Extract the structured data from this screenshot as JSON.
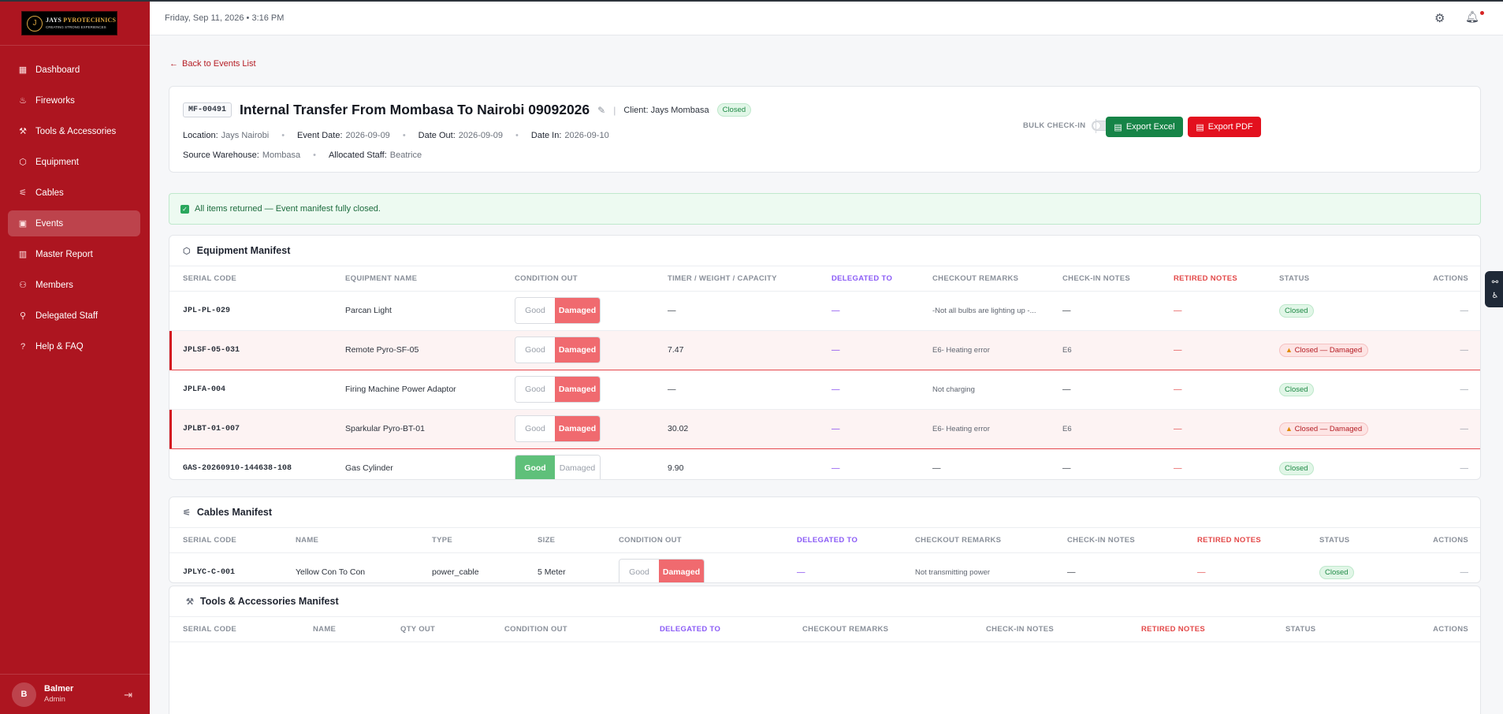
{
  "app": {
    "logo": {
      "brand_main": "JAYS",
      "brand_accent": "PYROTECHNICS",
      "tagline": "CREATING STRONG EXPERIENCES",
      "mark": "J"
    },
    "accent_color": "#ad1520"
  },
  "sidebar": {
    "items": [
      {
        "label": "Dashboard",
        "icon": "grid-icon"
      },
      {
        "label": "Fireworks",
        "icon": "flame-icon"
      },
      {
        "label": "Tools & Accessories",
        "icon": "wrench-icon"
      },
      {
        "label": "Equipment",
        "icon": "box-icon"
      },
      {
        "label": "Cables",
        "icon": "cable-icon"
      },
      {
        "label": "Events",
        "icon": "calendar-icon",
        "active": true
      },
      {
        "label": "Master Report",
        "icon": "chart-icon"
      },
      {
        "label": "Members",
        "icon": "users-icon"
      },
      {
        "label": "Delegated Staff",
        "icon": "user-check-icon"
      },
      {
        "label": "Help & FAQ",
        "icon": "help-icon"
      }
    ],
    "user": {
      "initial": "B",
      "name": "Balmer",
      "role": "Admin"
    }
  },
  "header": {
    "datetime": "Friday, Sep 11, 2026  •  3:16 PM"
  },
  "back_link": "Back to Events List",
  "event": {
    "code": "MF-00491",
    "title": "Internal Transfer From Mombasa To Nairobi 09092026",
    "client_label": "Client:",
    "client": "Jays Mombasa",
    "status": "Closed",
    "location_label": "Location:",
    "location": "Jays Nairobi",
    "event_date_label": "Event Date:",
    "event_date": "2026-09-09",
    "date_out_label": "Date Out:",
    "date_out": "2026-09-09",
    "date_in_label": "Date In:",
    "date_in": "2026-09-10",
    "source_label": "Source Warehouse:",
    "source": "Mombasa",
    "staff_label": "Allocated Staff:",
    "staff": "Beatrice",
    "bulk_checkin": "BULK CHECK-IN",
    "export_excel": "Export Excel",
    "export_pdf": "Export PDF"
  },
  "alert": "All items returned — Event manifest fully closed.",
  "equipment": {
    "title": "Equipment Manifest",
    "columns": [
      "SERIAL CODE",
      "EQUIPMENT NAME",
      "CONDITION OUT",
      "TIMER / WEIGHT / CAPACITY",
      "DELEGATED TO",
      "CHECKOUT REMARKS",
      "CHECK-IN NOTES",
      "RETIRED NOTES",
      "STATUS",
      "ACTIONS"
    ],
    "condition_good": "Good",
    "condition_damaged": "Damaged",
    "rows": [
      {
        "serial": "JPL-PL-029",
        "name": "Parcan Light",
        "condition": "Damaged",
        "timer": "—",
        "delegated": "—",
        "remarks": "-Not all bulbs are lighting up -...",
        "checkin": "—",
        "retired": "—",
        "status": "Closed",
        "actions": "—"
      },
      {
        "serial": "JPLSF-05-031",
        "name": "Remote Pyro-SF-05",
        "condition": "Damaged",
        "timer": "7.47",
        "delegated": "—",
        "remarks": "E6- Heating error",
        "checkin": "E6",
        "retired": "—",
        "status": "Closed — Damaged",
        "actions": "—"
      },
      {
        "serial": "JPLFA-004",
        "name": "Firing Machine Power Adaptor",
        "condition": "Damaged",
        "timer": "—",
        "delegated": "—",
        "remarks": "Not charging",
        "checkin": "—",
        "retired": "—",
        "status": "Closed",
        "actions": "—"
      },
      {
        "serial": "JPLBT-01-007",
        "name": "Sparkular Pyro-BT-01",
        "condition": "Damaged",
        "timer": "30.02",
        "delegated": "—",
        "remarks": "E6- Heating error",
        "checkin": "E6",
        "retired": "—",
        "status": "Closed — Damaged",
        "actions": "—"
      },
      {
        "serial": "GAS-20260910-144638-108",
        "name": "Gas Cylinder",
        "condition": "Good",
        "timer": "9.90",
        "delegated": "—",
        "remarks": "—",
        "checkin": "—",
        "retired": "—",
        "status": "Closed",
        "actions": "—"
      }
    ]
  },
  "cables": {
    "title": "Cables Manifest",
    "columns": [
      "SERIAL CODE",
      "NAME",
      "TYPE",
      "SIZE",
      "CONDITION OUT",
      "DELEGATED TO",
      "CHECKOUT REMARKS",
      "CHECK-IN NOTES",
      "RETIRED NOTES",
      "STATUS",
      "ACTIONS"
    ],
    "rows": [
      {
        "serial": "JPLYC-C-001",
        "name": "Yellow Con To Con",
        "type": "power_cable",
        "size": "5 Meter",
        "condition": "Damaged",
        "delegated": "—",
        "remarks": "Not transmitting power",
        "checkin": "—",
        "retired": "—",
        "status": "Closed",
        "actions": "—"
      }
    ]
  },
  "tools": {
    "title": "Tools & Accessories Manifest",
    "columns": [
      "SERIAL CODE",
      "NAME",
      "QTY OUT",
      "CONDITION OUT",
      "DELEGATED TO",
      "CHECKOUT REMARKS",
      "CHECK-IN NOTES",
      "RETIRED NOTES",
      "STATUS",
      "ACTIONS"
    ]
  }
}
